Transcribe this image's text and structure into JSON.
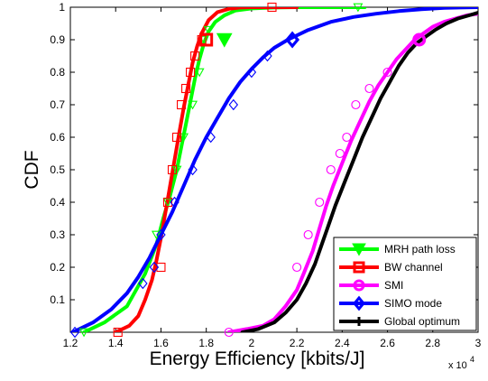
{
  "chart_data": {
    "type": "line",
    "xlabel": "Energy Efficiency [kbits/J]",
    "ylabel": "CDF",
    "x_multiplier_label": "x 10",
    "x_multiplier_exp": "4",
    "xlim": [
      12000,
      30000
    ],
    "ylim": [
      0,
      1
    ],
    "xticks": [
      12000,
      14000,
      16000,
      18000,
      20000,
      22000,
      24000,
      26000,
      28000,
      30000
    ],
    "xtick_labels": [
      "1.2",
      "1.4",
      "1.6",
      "1.8",
      "2",
      "2.2",
      "2.4",
      "2.6",
      "2.8",
      "3"
    ],
    "yticks": [
      0.1,
      0.2,
      0.3,
      0.4,
      0.5,
      0.6,
      0.7,
      0.8,
      0.9,
      1
    ],
    "ytick_labels": [
      "0.1",
      "0.2",
      "0.3",
      "0.4",
      "0.5",
      "0.6",
      "0.7",
      "0.8",
      "0.9",
      "1"
    ],
    "grid": false,
    "legend_position": "bottom-right",
    "series": [
      {
        "name": "MRH path loss",
        "color": "#00ff00",
        "marker": "triangle-down",
        "x": [
          12600,
          13500,
          14500,
          15300,
          15800,
          16100,
          16400,
          16700,
          16900,
          17100,
          17300,
          17500,
          17700,
          17900,
          18100,
          18400,
          18800,
          19300,
          20000,
          21000,
          22000,
          23000,
          24000,
          25000
        ],
        "y": [
          0.0,
          0.03,
          0.08,
          0.18,
          0.27,
          0.35,
          0.42,
          0.5,
          0.57,
          0.64,
          0.71,
          0.78,
          0.84,
          0.89,
          0.925,
          0.955,
          0.975,
          0.99,
          0.996,
          0.999,
          1.0,
          1.0,
          1.0,
          1.0
        ],
        "markers_x": [
          12600,
          15800,
          16300,
          16700,
          17000,
          17400,
          17700,
          17900,
          18100,
          24700
        ],
        "markers_y": [
          0.0,
          0.3,
          0.4,
          0.5,
          0.6,
          0.7,
          0.8,
          0.9,
          0.93,
          1.0
        ],
        "highlight_x": 18800,
        "highlight_y": 0.9
      },
      {
        "name": "BW channel",
        "color": "#ff0000",
        "marker": "square",
        "x": [
          14000,
          14600,
          15000,
          15300,
          15600,
          15800,
          16000,
          16200,
          16400,
          16600,
          16800,
          17000,
          17200,
          17400,
          17600,
          17800,
          18100,
          18500,
          19000,
          19500,
          20000,
          21000,
          22000
        ],
        "y": [
          0.0,
          0.02,
          0.05,
          0.1,
          0.16,
          0.22,
          0.29,
          0.37,
          0.45,
          0.53,
          0.61,
          0.69,
          0.76,
          0.83,
          0.88,
          0.92,
          0.96,
          0.985,
          0.995,
          0.999,
          1.0,
          1.0,
          1.0
        ],
        "markers_x": [
          14100,
          16000,
          16300,
          16500,
          16700,
          16900,
          17100,
          17300,
          17500,
          17800,
          20900
        ],
        "markers_y": [
          0.0,
          0.2,
          0.4,
          0.5,
          0.6,
          0.7,
          0.75,
          0.8,
          0.85,
          0.9,
          1.0
        ],
        "highlight_x": 18000,
        "highlight_y": 0.9
      },
      {
        "name": "SMI",
        "color": "#ff00ff",
        "marker": "circle",
        "x": [
          19000,
          19800,
          20500,
          21000,
          21500,
          22000,
          22300,
          22700,
          23000,
          23300,
          23600,
          24000,
          24400,
          24800,
          25200,
          25600,
          26000,
          26400,
          26800,
          27200,
          27600,
          28000,
          28500,
          29000,
          29500,
          30000
        ],
        "y": [
          0.0,
          0.01,
          0.02,
          0.04,
          0.08,
          0.13,
          0.18,
          0.25,
          0.32,
          0.39,
          0.45,
          0.52,
          0.59,
          0.65,
          0.71,
          0.76,
          0.8,
          0.84,
          0.87,
          0.9,
          0.92,
          0.94,
          0.955,
          0.965,
          0.975,
          0.98
        ],
        "markers_x": [
          19000,
          22000,
          22500,
          23000,
          23500,
          23900,
          24200,
          24600,
          25200,
          26000,
          27400
        ],
        "markers_y": [
          0.0,
          0.2,
          0.3,
          0.4,
          0.5,
          0.55,
          0.6,
          0.7,
          0.75,
          0.8,
          0.9
        ],
        "highlight_x": 27400,
        "highlight_y": 0.9
      },
      {
        "name": "SIMO mode",
        "color": "#0000ff",
        "marker": "diamond",
        "x": [
          12100,
          13000,
          13800,
          14500,
          15000,
          15500,
          16000,
          16500,
          17000,
          17500,
          18000,
          18500,
          19000,
          19500,
          20000,
          20500,
          21000,
          21600,
          22500,
          23500,
          24500,
          25500,
          26500,
          27500,
          28500,
          30000
        ],
        "y": [
          0.0,
          0.03,
          0.07,
          0.12,
          0.17,
          0.23,
          0.3,
          0.37,
          0.45,
          0.53,
          0.6,
          0.66,
          0.72,
          0.77,
          0.81,
          0.845,
          0.875,
          0.9,
          0.93,
          0.955,
          0.97,
          0.98,
          0.988,
          0.994,
          0.998,
          1.0
        ],
        "markers_x": [
          12200,
          15200,
          15700,
          16000,
          16600,
          17400,
          18200,
          19200,
          20000,
          20700,
          21800
        ],
        "markers_y": [
          0.0,
          0.15,
          0.2,
          0.3,
          0.4,
          0.5,
          0.6,
          0.7,
          0.8,
          0.85,
          0.9
        ],
        "highlight_x": 21800,
        "highlight_y": 0.9
      },
      {
        "name": "Global optimum",
        "color": "#000000",
        "marker": "plus",
        "x": [
          19600,
          20300,
          21000,
          21500,
          22000,
          22400,
          22800,
          23100,
          23400,
          23700,
          24100,
          24500,
          24900,
          25300,
          25700,
          26100,
          26500,
          26900,
          27300,
          27700,
          28100,
          28600,
          29100,
          29600,
          30000
        ],
        "y": [
          0.0,
          0.01,
          0.03,
          0.06,
          0.1,
          0.15,
          0.21,
          0.27,
          0.33,
          0.39,
          0.46,
          0.53,
          0.6,
          0.66,
          0.72,
          0.77,
          0.82,
          0.86,
          0.89,
          0.91,
          0.93,
          0.95,
          0.965,
          0.975,
          0.983
        ],
        "markers_x": [],
        "markers_y": []
      }
    ]
  }
}
